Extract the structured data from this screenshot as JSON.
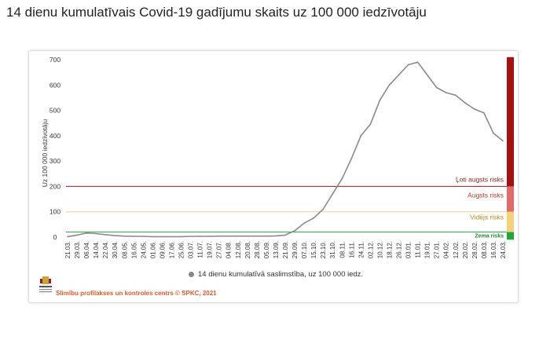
{
  "headline": "14 dienu kumulatīvais Covid-19 gadījumu skaits uz 100 000 iedzīvotāju",
  "credit": "Slimību profilakses un kontroles centrs © SPKC, 2021",
  "colors": {
    "line": "#8a8a8a",
    "very_high": "#9b1c1c",
    "high": "#e45b5b",
    "medium": "#f2d283",
    "low": "#2bb34a",
    "band_very_high": "#a51010",
    "band_high": "#e36a6a",
    "band_medium": "#f5d27a",
    "band_low": "#1fa83a"
  },
  "chart_data": {
    "type": "line",
    "title": "",
    "xlabel": "",
    "ylabel": "Uz 100 000 iedzīvotāju",
    "ylim": [
      0,
      700
    ],
    "yticks": [
      0,
      100,
      200,
      300,
      400,
      500,
      600,
      700
    ],
    "grid": false,
    "legend_position": "bottom",
    "categories": [
      "21.03.",
      "29.03.",
      "06.04.",
      "14.04.",
      "22.04.",
      "30.04.",
      "08.05.",
      "16.05.",
      "24.05.",
      "01.06.",
      "09.06.",
      "17.06.",
      "25.06.",
      "03.07.",
      "11.07.",
      "19.07.",
      "27.07.",
      "04.08.",
      "12.08.",
      "20.08.",
      "28.08.",
      "05.09.",
      "13.09.",
      "21.09.",
      "29.09.",
      "07.10.",
      "15.10.",
      "23.10.",
      "31.10.",
      "08.11.",
      "16.11.",
      "24.11.",
      "02.12.",
      "10.12.",
      "18.12.",
      "26.12.",
      "03.01.",
      "11.01.",
      "19.01.",
      "27.01.",
      "04.02.",
      "12.02.",
      "20.02.",
      "28.02.",
      "08.03.",
      "16.03.",
      "24.03."
    ],
    "series": [
      {
        "name": "14 dienu kumulatīvā saslimstība, uz 100 000 iedz.",
        "values": [
          2,
          8,
          16,
          14,
          10,
          6,
          4,
          3,
          3,
          2,
          2,
          2,
          2,
          3,
          3,
          3,
          4,
          4,
          4,
          4,
          4,
          4,
          5,
          8,
          25,
          55,
          75,
          110,
          170,
          230,
          310,
          400,
          445,
          540,
          600,
          640,
          680,
          690,
          640,
          590,
          570,
          560,
          530,
          505,
          490,
          410,
          380
        ]
      }
    ],
    "thresholds": [
      {
        "value": 20,
        "label": "Zema risks"
      },
      {
        "value": 100,
        "label": "Vidējs risks"
      },
      {
        "value": 200,
        "label": "Augsts risks"
      },
      {
        "value": 200,
        "label": "Ļoti augsts risks"
      }
    ]
  }
}
